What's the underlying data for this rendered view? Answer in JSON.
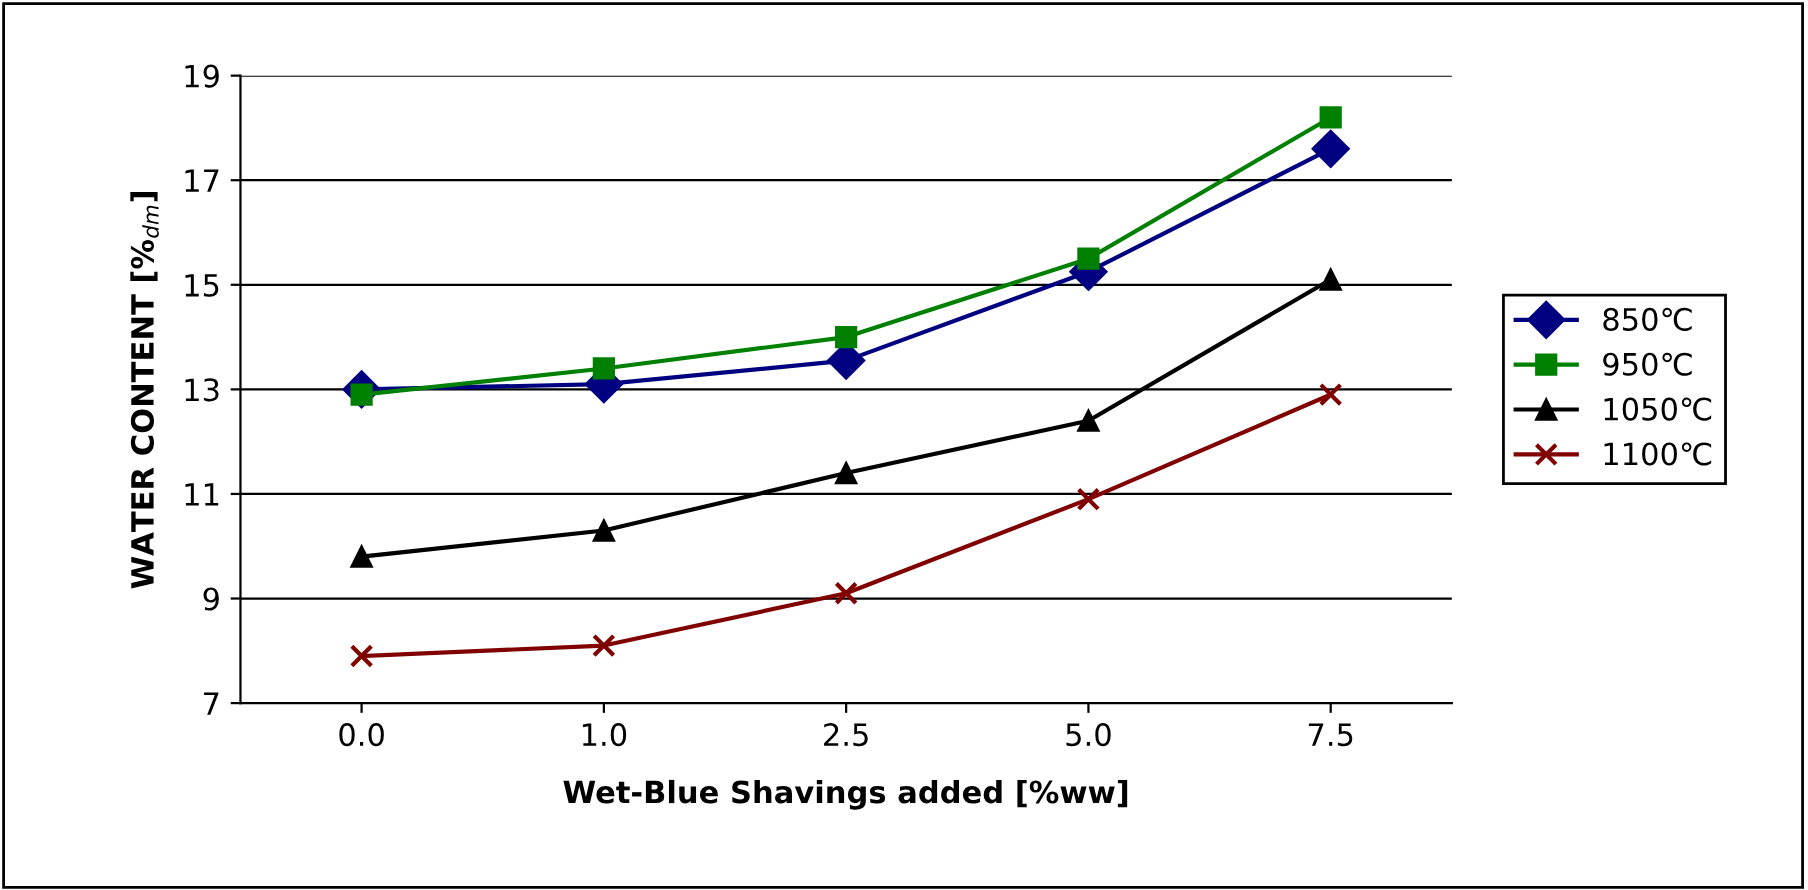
{
  "chart_data": {
    "type": "line",
    "xlabel": "Wet-Blue Shavings added [%ww]",
    "ylabel": "WATER CONTENT [%$_{dm}$]",
    "categories": [
      "0.0",
      "1.0",
      "2.5",
      "5.0",
      "7.5"
    ],
    "ylim": [
      7,
      19
    ],
    "yticks": [
      7,
      9,
      11,
      13,
      15,
      17,
      19
    ],
    "grid": "y",
    "legend": "right",
    "series": [
      {
        "name": "850℃",
        "color": "#000080",
        "marker": "diamond",
        "values": [
          13.0,
          13.1,
          13.55,
          15.25,
          17.6
        ]
      },
      {
        "name": "950℃",
        "color": "#008000",
        "marker": "square",
        "values": [
          12.9,
          13.4,
          14.0,
          15.5,
          18.2
        ]
      },
      {
        "name": "1050℃",
        "color": "#000000",
        "marker": "triangle",
        "values": [
          9.8,
          10.3,
          11.4,
          12.4,
          15.1
        ]
      },
      {
        "name": "1100℃",
        "color": "#800000",
        "marker": "cross",
        "values": [
          7.9,
          8.1,
          9.1,
          10.9,
          12.9
        ]
      }
    ]
  }
}
